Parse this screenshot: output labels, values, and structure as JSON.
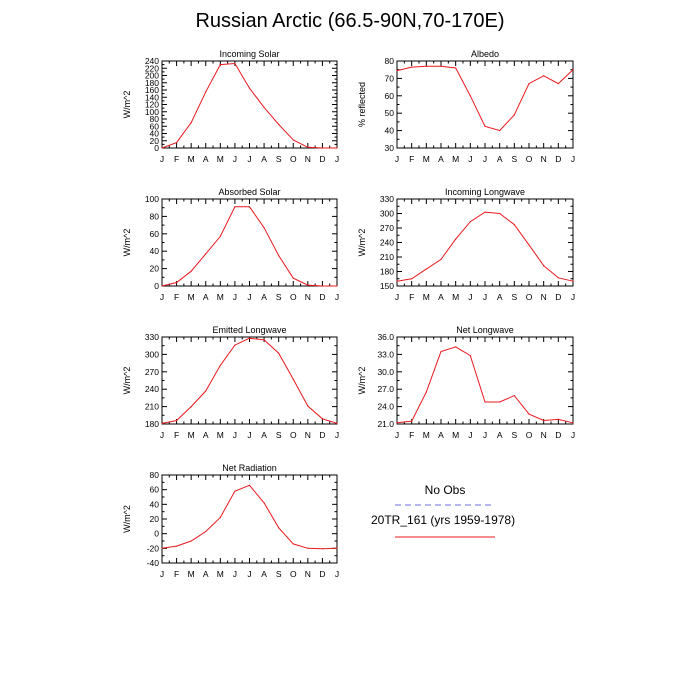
{
  "title": "Russian Arctic (66.5-90N,70-170E)",
  "months": [
    "J",
    "F",
    "M",
    "A",
    "M",
    "J",
    "J",
    "A",
    "S",
    "O",
    "N",
    "D",
    "J"
  ],
  "colors": {
    "line": "#e8191e",
    "obs_line": "#6f6fe0",
    "axis": "#000000"
  },
  "legend": {
    "obs_label": "No Obs",
    "model_label": "20TR_161 (yrs 1959-1978)"
  },
  "chart_data": [
    {
      "type": "line",
      "title": "Incoming Solar",
      "xlabel": "",
      "ylabel": "W/m^2",
      "ylim": [
        0,
        240
      ],
      "yticks": [
        "0",
        "20",
        "40",
        "60",
        "80",
        "100",
        "120",
        "140",
        "160",
        "180",
        "200",
        "220",
        "240"
      ],
      "series": [
        {
          "values": [
            0,
            15,
            70,
            155,
            230,
            233,
            165,
            112,
            65,
            22,
            2,
            0,
            0
          ]
        }
      ]
    },
    {
      "type": "line",
      "title": "Albedo",
      "xlabel": "",
      "ylabel": "% reflected",
      "ylim": [
        30,
        80
      ],
      "yticks": [
        "30",
        "40",
        "50",
        "60",
        "70",
        "80"
      ],
      "series": [
        {
          "values": [
            74.5,
            76.5,
            77,
            77,
            76,
            60,
            42.5,
            40,
            49,
            67,
            71.5,
            67,
            75
          ]
        }
      ]
    },
    {
      "type": "line",
      "title": "Absorbed Solar",
      "xlabel": "",
      "ylabel": "W/m^2",
      "ylim": [
        0,
        100
      ],
      "yticks": [
        "0",
        "20",
        "40",
        "60",
        "80",
        "100"
      ],
      "series": [
        {
          "values": [
            0,
            4,
            17,
            37,
            57,
            91,
            91,
            67,
            35,
            9,
            1,
            0,
            0
          ]
        }
      ]
    },
    {
      "type": "line",
      "title": "Incoming Longwave",
      "xlabel": "",
      "ylabel": "W/m^2",
      "ylim": [
        150,
        330
      ],
      "yticks": [
        "150",
        "180",
        "210",
        "240",
        "270",
        "300",
        "330"
      ],
      "series": [
        {
          "values": [
            160,
            165,
            185,
            205,
            247,
            283,
            303,
            300,
            277,
            235,
            192,
            167,
            160
          ]
        }
      ]
    },
    {
      "type": "line",
      "title": "Emitted Longwave",
      "xlabel": "",
      "ylabel": "W/m^2",
      "ylim": [
        180,
        330
      ],
      "yticks": [
        "180",
        "210",
        "240",
        "270",
        "300",
        "330"
      ],
      "series": [
        {
          "values": [
            181,
            186,
            210,
            237,
            281,
            316,
            328,
            325,
            302,
            257,
            211,
            189,
            181
          ]
        }
      ]
    },
    {
      "type": "line",
      "title": "Net Longwave",
      "xlabel": "",
      "ylabel": "W/m^2",
      "ylim": [
        21,
        36
      ],
      "yticks": [
        "21.0",
        "24.0",
        "27.0",
        "30.0",
        "33.0",
        "36.0"
      ],
      "series": [
        {
          "values": [
            21.2,
            21.5,
            26.5,
            33.5,
            34.3,
            32.8,
            24.8,
            24.8,
            25.9,
            22.7,
            21.6,
            21.8,
            21.2
          ]
        }
      ]
    },
    {
      "type": "line",
      "title": "Net Radiation",
      "xlabel": "",
      "ylabel": "W/m^2",
      "ylim": [
        -40,
        80
      ],
      "yticks": [
        "-40",
        "-20",
        "0",
        "20",
        "40",
        "60",
        "80"
      ],
      "series": [
        {
          "values": [
            -20,
            -17,
            -10,
            3,
            22,
            58,
            66,
            42,
            8,
            -14,
            -20,
            -20.5,
            -20
          ]
        }
      ]
    }
  ]
}
